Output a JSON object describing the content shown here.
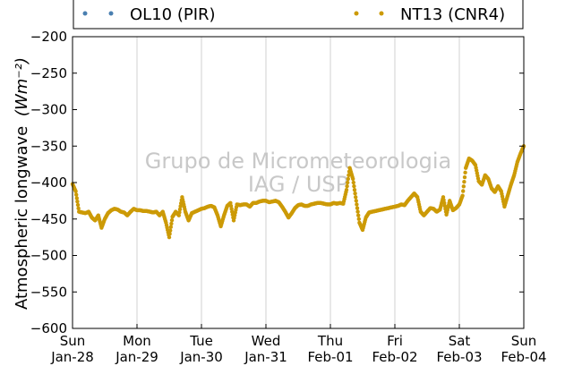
{
  "chart_data": {
    "type": "scatter",
    "title": "",
    "xlabel": "",
    "ylabel": "Atmospheric longwave",
    "ylabel_unit": "(Wm⁻²)",
    "ylim": [
      -600,
      -200
    ],
    "yticks": [
      -200,
      -250,
      -300,
      -350,
      -400,
      -450,
      -500,
      -550,
      -600
    ],
    "ytick_labels": [
      "−200",
      "−250",
      "−300",
      "−350",
      "−400",
      "−450",
      "−500",
      "−550",
      "−600"
    ],
    "xlim": [
      "2018-01-28",
      "2018-02-04"
    ],
    "xticks": [
      {
        "day": "Sun",
        "date": "Jan-28"
      },
      {
        "day": "Mon",
        "date": "Jan-29"
      },
      {
        "day": "Tue",
        "date": "Jan-30"
      },
      {
        "day": "Wed",
        "date": "Jan-31"
      },
      {
        "day": "Thu",
        "date": "Feb-01"
      },
      {
        "day": "Fri",
        "date": "Feb-02"
      },
      {
        "day": "Sat",
        "date": "Feb-03"
      },
      {
        "day": "Sun",
        "date": "Feb-04"
      }
    ],
    "grid": "vertical",
    "legend_position": "top",
    "series": [
      {
        "name": "OL10 (PIR)",
        "color": "#4a7fb0",
        "values": []
      },
      {
        "name": "NT13 (CNR4)",
        "color": "#cc9a06",
        "x_days": [
          0.0,
          0.05,
          0.1,
          0.15,
          0.2,
          0.25,
          0.3,
          0.35,
          0.4,
          0.45,
          0.5,
          0.55,
          0.6,
          0.65,
          0.7,
          0.75,
          0.8,
          0.85,
          0.9,
          0.95,
          1.0,
          1.05,
          1.1,
          1.15,
          1.2,
          1.25,
          1.3,
          1.35,
          1.4,
          1.45,
          1.5,
          1.55,
          1.6,
          1.65,
          1.7,
          1.75,
          1.8,
          1.85,
          1.9,
          1.95,
          2.0,
          2.05,
          2.1,
          2.15,
          2.2,
          2.25,
          2.3,
          2.35,
          2.4,
          2.45,
          2.5,
          2.55,
          2.6,
          2.65,
          2.7,
          2.75,
          2.8,
          2.85,
          2.9,
          2.95,
          3.0,
          3.05,
          3.1,
          3.15,
          3.2,
          3.25,
          3.3,
          3.35,
          3.4,
          3.45,
          3.5,
          3.55,
          3.6,
          3.65,
          3.7,
          3.75,
          3.8,
          3.85,
          3.9,
          3.95,
          4.0,
          4.05,
          4.1,
          4.15,
          4.2,
          4.25,
          4.3,
          4.35,
          4.4,
          4.45,
          4.5,
          4.55,
          4.6,
          4.65,
          4.7,
          4.75,
          4.8,
          4.85,
          4.9,
          4.95,
          5.0,
          5.05,
          5.1,
          5.15,
          5.2,
          5.25,
          5.3,
          5.35,
          5.4,
          5.45,
          5.5,
          5.55,
          5.6,
          5.65,
          5.7,
          5.75,
          5.8,
          5.85,
          5.9,
          5.95,
          6.0,
          6.05,
          6.1,
          6.15,
          6.2,
          6.25,
          6.3,
          6.35,
          6.4,
          6.45,
          6.5,
          6.55,
          6.6,
          6.65,
          6.7,
          6.75,
          6.8,
          6.85,
          6.9,
          6.95,
          7.0
        ],
        "values": [
          -402,
          -412,
          -440,
          -441,
          -442,
          -440,
          -448,
          -452,
          -445,
          -462,
          -450,
          -442,
          -438,
          -436,
          -437,
          -440,
          -441,
          -445,
          -440,
          -436,
          -438,
          -438,
          -439,
          -439,
          -440,
          -441,
          -440,
          -445,
          -440,
          -455,
          -475,
          -447,
          -440,
          -445,
          -420,
          -440,
          -452,
          -442,
          -440,
          -438,
          -436,
          -435,
          -433,
          -432,
          -434,
          -445,
          -460,
          -445,
          -432,
          -428,
          -452,
          -430,
          -431,
          -430,
          -430,
          -433,
          -428,
          -428,
          -426,
          -425,
          -425,
          -427,
          -426,
          -425,
          -427,
          -433,
          -440,
          -448,
          -442,
          -435,
          -431,
          -430,
          -432,
          -432,
          -430,
          -429,
          -428,
          -428,
          -429,
          -430,
          -430,
          -428,
          -429,
          -428,
          -429,
          -410,
          -380,
          -395,
          -425,
          -455,
          -465,
          -448,
          -441,
          -440,
          -439,
          -438,
          -437,
          -436,
          -435,
          -434,
          -433,
          -432,
          -430,
          -431,
          -425,
          -420,
          -415,
          -420,
          -440,
          -445,
          -440,
          -435,
          -436,
          -440,
          -437,
          -420,
          -444,
          -425,
          -438,
          -435,
          -430,
          -418,
          -380,
          -367,
          -370,
          -376,
          -398,
          -403,
          -390,
          -395,
          -408,
          -413,
          -405,
          -412,
          -433,
          -418,
          -403,
          -390,
          -372,
          -360,
          -350
        ]
      }
    ],
    "watermark": [
      "Grupo de Micrometeorologia",
      "IAG / USP"
    ]
  }
}
